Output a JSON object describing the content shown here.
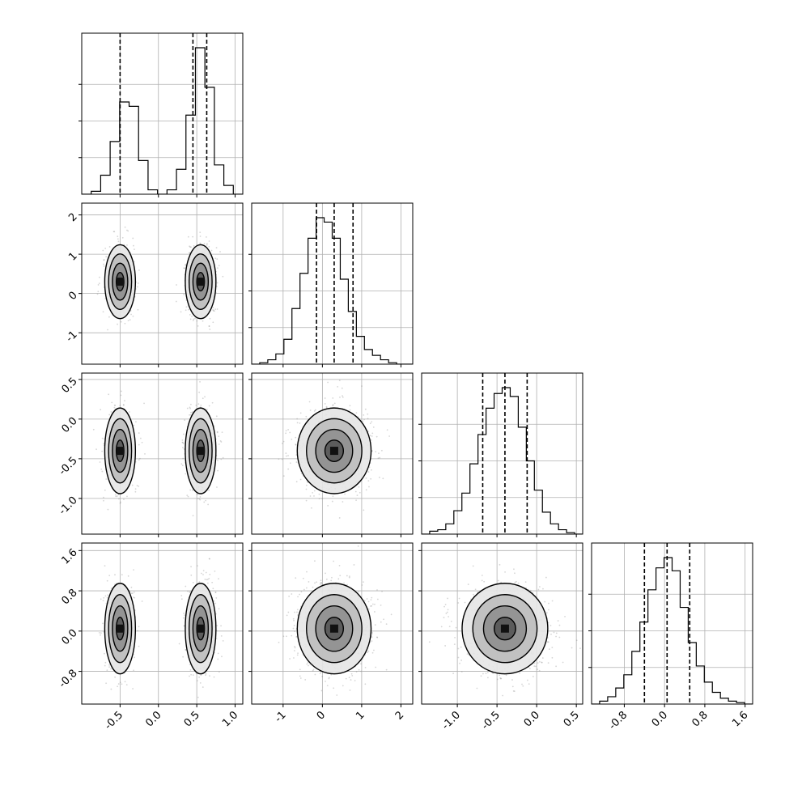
{
  "chart_data": {
    "type": "corner",
    "title": "",
    "variables": [
      "",
      "",
      "",
      ""
    ],
    "ranges": [
      [
        -1.0,
        1.1
      ],
      [
        -1.8,
        2.3
      ],
      [
        -1.45,
        0.58
      ],
      [
        -1.45,
        1.75
      ]
    ],
    "ticks": [
      [
        "-0.5",
        "0.0",
        "0.5",
        "1.0"
      ],
      [
        "-1",
        "0",
        "1",
        "2"
      ],
      [
        "-1.0",
        "-0.5",
        "0.0",
        "0.5"
      ],
      [
        "-0.8",
        "0.0",
        "0.8",
        "1.6"
      ]
    ],
    "quantiles": [
      [
        -0.5,
        0.45,
        0.63
      ],
      [
        -0.15,
        0.3,
        0.78
      ],
      [
        -0.68,
        -0.4,
        -0.12
      ],
      [
        -0.4,
        0.05,
        0.5
      ]
    ],
    "histograms": [
      {
        "edges_min": -1.0,
        "edges_max": 1.1,
        "counts": [
          0,
          0.02,
          0.13,
          0.36,
          0.63,
          0.6,
          0.23,
          0.03,
          0,
          0.03,
          0.17,
          0.54,
          1.0,
          0.73,
          0.2,
          0.06,
          0
        ]
      },
      {
        "edges_min": -1.8,
        "edges_max": 2.3,
        "counts": [
          0,
          0.01,
          0.03,
          0.07,
          0.17,
          0.38,
          0.62,
          0.86,
          1.0,
          0.97,
          0.86,
          0.58,
          0.36,
          0.19,
          0.1,
          0.06,
          0.03,
          0.01,
          0,
          0
        ]
      },
      {
        "edges_min": -1.45,
        "edges_max": 0.58,
        "counts": [
          0,
          0.02,
          0.03,
          0.07,
          0.16,
          0.28,
          0.48,
          0.68,
          0.86,
          0.96,
          1.0,
          0.94,
          0.73,
          0.5,
          0.3,
          0.15,
          0.07,
          0.03,
          0.01,
          0
        ]
      },
      {
        "edges_min": -1.45,
        "edges_max": 1.75,
        "counts": [
          0,
          0.02,
          0.05,
          0.11,
          0.2,
          0.36,
          0.56,
          0.78,
          0.93,
          1.0,
          0.91,
          0.66,
          0.42,
          0.26,
          0.15,
          0.08,
          0.04,
          0.02,
          0.01,
          0
        ]
      }
    ],
    "mixture_components_var1": [
      {
        "mean": -0.5,
        "sd": 0.1,
        "weight": 0.4
      },
      {
        "mean": 0.55,
        "sd": 0.1,
        "weight": 0.6
      }
    ],
    "gaussian_params": [
      {
        "mean": 0.3,
        "sd": 0.47
      },
      {
        "mean": -0.4,
        "sd": 0.27
      },
      {
        "mean": 0.05,
        "sd": 0.45
      }
    ],
    "grid": true,
    "colors": {
      "line": "#000000",
      "grid": "#b0b0b0",
      "points": "#8a8a8a"
    }
  }
}
